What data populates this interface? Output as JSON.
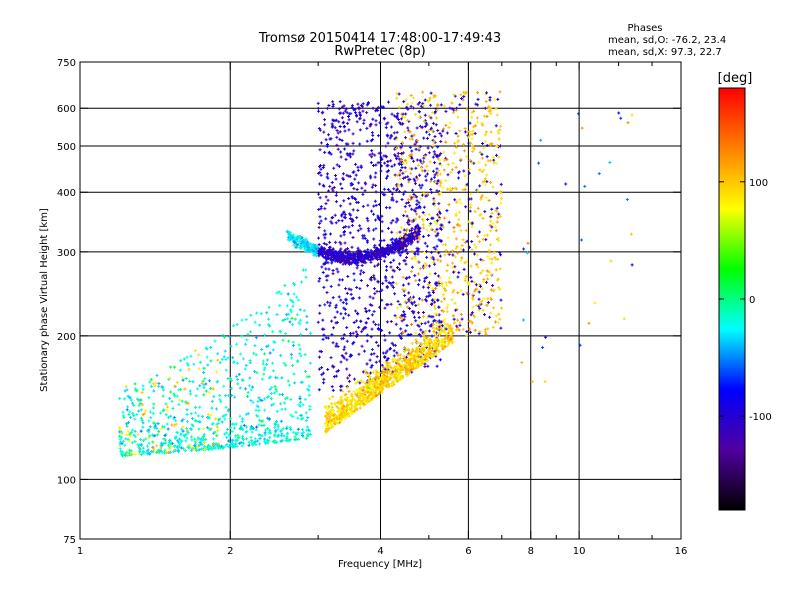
{
  "chart_data": {
    "type": "scatter",
    "title": "Tromsø 20150414 17:48:00-17:49:43",
    "subtitle": "RwPretec (8p)",
    "xlabel": "Frequency [MHz]",
    "ylabel": "Stationary phase Virtual Height [km]",
    "x_scale": "log",
    "y_scale": "log",
    "xlim": [
      1,
      16
    ],
    "ylim": [
      75,
      750
    ],
    "x_ticks": [
      1,
      2,
      4,
      6,
      8,
      10,
      16
    ],
    "x_tick_labels": [
      "1",
      "2",
      "4",
      "6",
      "8",
      "10",
      "16"
    ],
    "x_grid": [
      2,
      4,
      6,
      8,
      10
    ],
    "x_minor_ticks": [
      3,
      5,
      7,
      9,
      12,
      14
    ],
    "y_ticks": [
      75,
      100,
      200,
      300,
      400,
      500,
      600,
      750
    ],
    "y_tick_labels": [
      "75",
      "100",
      "200",
      "300",
      "400",
      "500",
      "600",
      "750"
    ],
    "y_grid": [
      100,
      200,
      300,
      400,
      500,
      600
    ],
    "grid": true,
    "stats": {
      "heading": "Phases",
      "line_o": "mean, sd,O: -76.2, 23.4",
      "line_x": "mean, sd,X:  97.3, 22.7"
    },
    "colorbar": {
      "label": "[deg]",
      "range": [
        -180,
        180
      ],
      "ticks": [
        100,
        0,
        -100
      ],
      "tick_labels": [
        "100",
        "0",
        "-100"
      ],
      "colormap": [
        "#000000",
        "#5000a0",
        "#0000ff",
        "#00ffff",
        "#00ff00",
        "#ffff00",
        "#ff8000",
        "#ff0000"
      ]
    },
    "series": [
      {
        "name": "",
        "x_range": [
          1.2,
          2.9
        ],
        "y_range": [
          112,
          260
        ],
        "phase": -20,
        "count": 900,
        "shape": "lower ramp"
      },
      {
        "name": "",
        "x_range": [
          2.6,
          4.8
        ],
        "y_range": [
          285,
          320
        ],
        "phase": -110,
        "count": 800,
        "shape": "arc"
      },
      {
        "name": "",
        "x_range": [
          3.0,
          5.3
        ],
        "y_range": [
          150,
          620
        ],
        "phase": -100,
        "count": 1100,
        "shape": "fill"
      },
      {
        "name": "",
        "x_range": [
          3.1,
          5.6
        ],
        "y_range": [
          125,
          200
        ],
        "phase": 95,
        "count": 900,
        "shape": "x-trace"
      },
      {
        "name": "",
        "x_range": [
          4.3,
          7.0
        ],
        "y_range": [
          200,
          650
        ],
        "phase": 100,
        "count": 700,
        "shape": "upper x"
      },
      {
        "name": "",
        "x_range": [
          7.5,
          12.8
        ],
        "y_range": [
          160,
          610
        ],
        "phase": -60,
        "count": 30,
        "shape": "sparse"
      }
    ]
  }
}
